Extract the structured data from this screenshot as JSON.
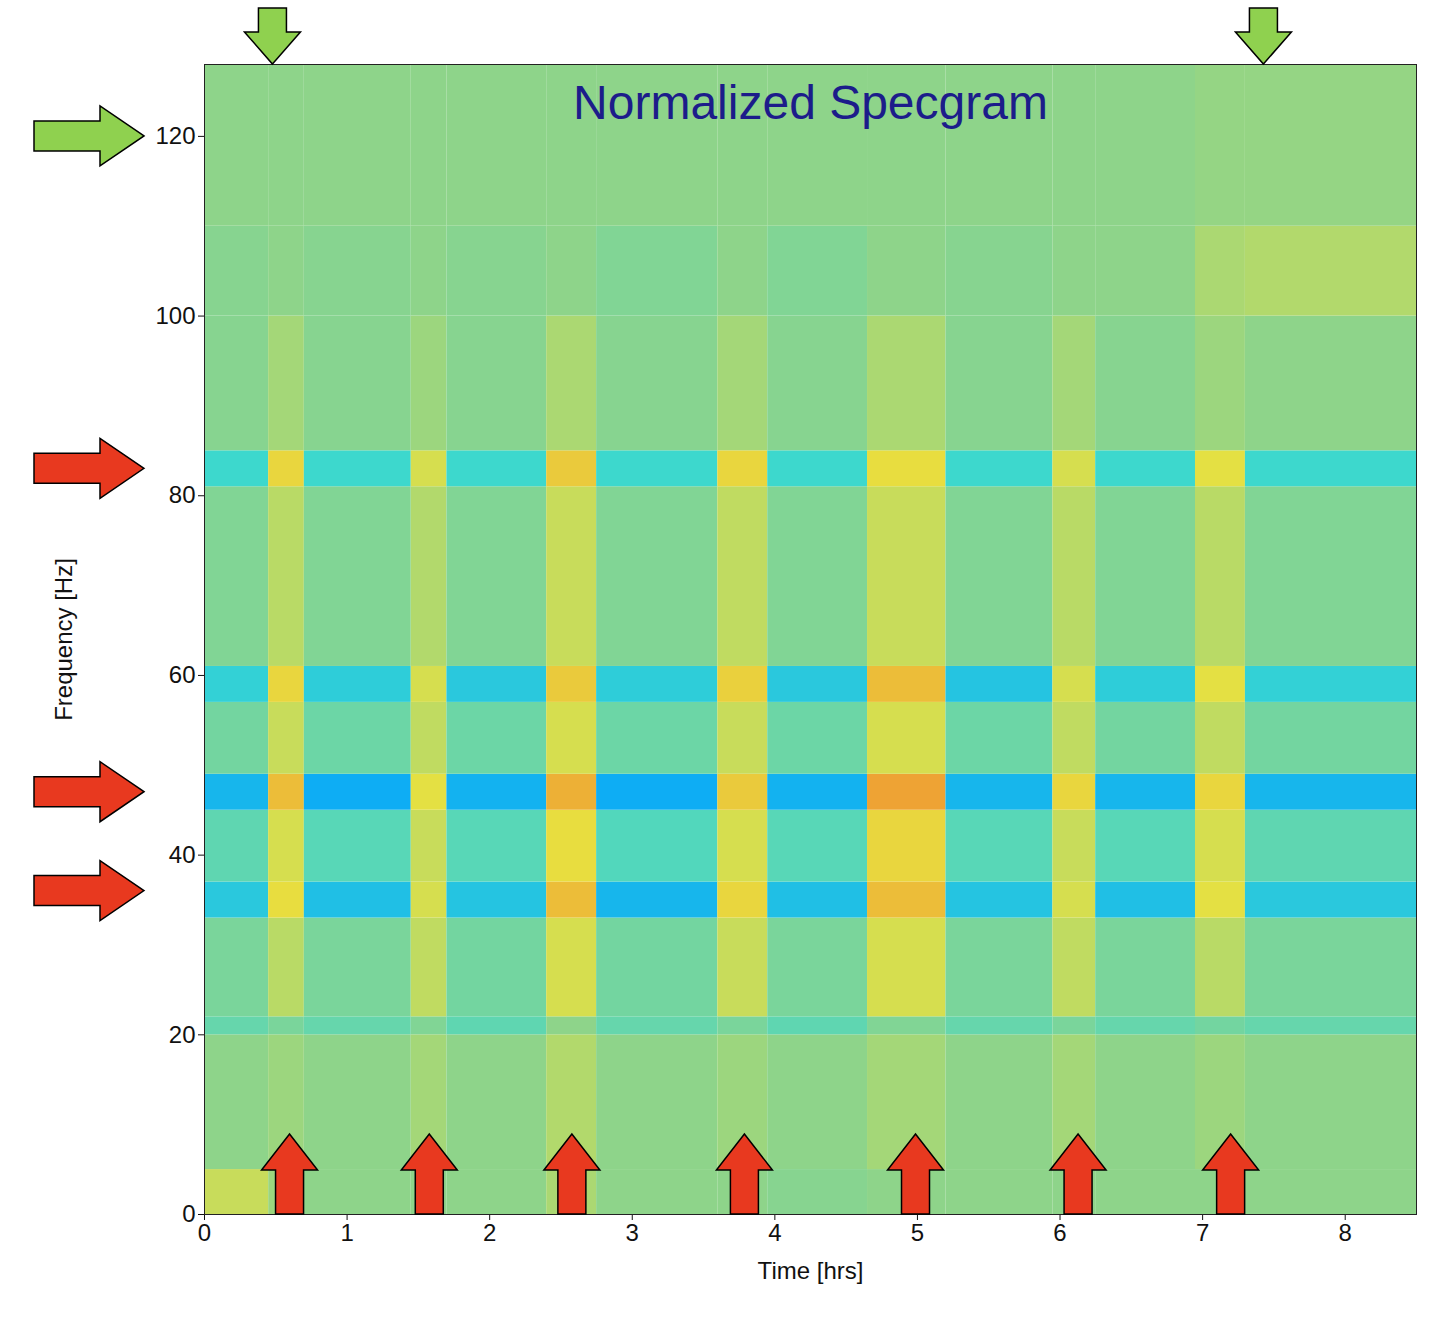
{
  "chart_data": {
    "type": "heatmap",
    "title": "Normalized Specgram",
    "x_label": "Time [hrs]",
    "y_label": "Frequency [Hz]",
    "xlim": [
      0,
      8.5
    ],
    "ylim": [
      0,
      128
    ],
    "xticks": [
      0,
      1,
      2,
      3,
      4,
      5,
      6,
      7,
      8
    ],
    "yticks": [
      0,
      20,
      40,
      60,
      80,
      100,
      120
    ],
    "zlim": [
      0,
      1
    ],
    "cells": {
      "x_edges": [
        0,
        0.45,
        0.7,
        1.45,
        1.7,
        2.4,
        2.75,
        3.6,
        3.95,
        4.65,
        5.2,
        5.95,
        6.25,
        6.95,
        7.3,
        8.5
      ],
      "y_edges": [
        0,
        5,
        20,
        22,
        33,
        37,
        45,
        49,
        57,
        61,
        81,
        85,
        100,
        110,
        128
      ],
      "values": [
        [
          0.58,
          0.52,
          0.5,
          0.5,
          0.5,
          0.54,
          0.5,
          0.5,
          0.49,
          0.5,
          0.5,
          0.5,
          0.5,
          0.5,
          0.5
        ],
        [
          0.5,
          0.52,
          0.5,
          0.53,
          0.5,
          0.55,
          0.5,
          0.52,
          0.5,
          0.53,
          0.5,
          0.53,
          0.5,
          0.52,
          0.5
        ],
        [
          0.44,
          0.47,
          0.44,
          0.48,
          0.43,
          0.5,
          0.44,
          0.47,
          0.43,
          0.48,
          0.44,
          0.47,
          0.44,
          0.46,
          0.44
        ],
        [
          0.47,
          0.56,
          0.47,
          0.57,
          0.46,
          0.6,
          0.46,
          0.58,
          0.47,
          0.6,
          0.47,
          0.57,
          0.47,
          0.56,
          0.47
        ],
        [
          0.34,
          0.63,
          0.32,
          0.6,
          0.33,
          0.68,
          0.3,
          0.64,
          0.32,
          0.68,
          0.33,
          0.6,
          0.32,
          0.62,
          0.34
        ],
        [
          0.43,
          0.6,
          0.42,
          0.58,
          0.42,
          0.63,
          0.41,
          0.6,
          0.42,
          0.64,
          0.42,
          0.58,
          0.42,
          0.6,
          0.43
        ],
        [
          0.3,
          0.68,
          0.28,
          0.62,
          0.29,
          0.7,
          0.28,
          0.66,
          0.29,
          0.72,
          0.3,
          0.64,
          0.3,
          0.64,
          0.3
        ],
        [
          0.46,
          0.58,
          0.45,
          0.57,
          0.45,
          0.6,
          0.45,
          0.58,
          0.45,
          0.6,
          0.45,
          0.57,
          0.46,
          0.57,
          0.46
        ],
        [
          0.36,
          0.64,
          0.35,
          0.6,
          0.34,
          0.66,
          0.35,
          0.65,
          0.34,
          0.68,
          0.33,
          0.6,
          0.35,
          0.62,
          0.36
        ],
        [
          0.48,
          0.56,
          0.48,
          0.55,
          0.48,
          0.58,
          0.48,
          0.57,
          0.48,
          0.58,
          0.48,
          0.56,
          0.48,
          0.56,
          0.48
        ],
        [
          0.38,
          0.64,
          0.38,
          0.6,
          0.38,
          0.66,
          0.38,
          0.64,
          0.38,
          0.63,
          0.38,
          0.6,
          0.38,
          0.62,
          0.38
        ],
        [
          0.49,
          0.53,
          0.49,
          0.52,
          0.49,
          0.54,
          0.49,
          0.53,
          0.49,
          0.54,
          0.49,
          0.53,
          0.49,
          0.52,
          0.5
        ],
        [
          0.49,
          0.5,
          0.49,
          0.5,
          0.49,
          0.5,
          0.48,
          0.5,
          0.48,
          0.5,
          0.49,
          0.5,
          0.5,
          0.54,
          0.55
        ],
        [
          0.5,
          0.5,
          0.5,
          0.5,
          0.5,
          0.5,
          0.5,
          0.5,
          0.5,
          0.5,
          0.5,
          0.5,
          0.5,
          0.51,
          0.51
        ]
      ]
    },
    "markers": [
      {
        "axis": "x",
        "marker": "arrow_up",
        "color": "#e8391f",
        "values": [
          0.6,
          1.58,
          2.58,
          3.79,
          4.99,
          6.13,
          7.2
        ]
      },
      {
        "axis": "y",
        "marker": "arrow_right",
        "color": "#e8391f",
        "values": [
          83,
          47,
          36
        ]
      },
      {
        "axis": "x",
        "marker": "arrow_down",
        "color": "#8fd14f",
        "values": [
          0.48,
          7.43
        ]
      },
      {
        "axis": "y",
        "marker": "arrow_right",
        "color": "#8fd14f",
        "values": [
          120
        ]
      }
    ]
  }
}
